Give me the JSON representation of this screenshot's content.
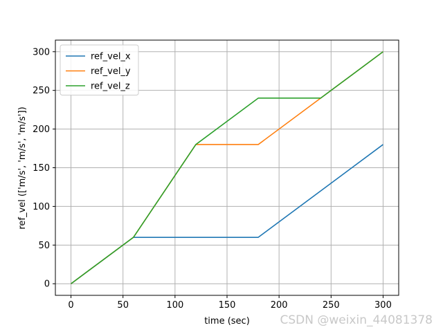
{
  "chart_data": {
    "type": "line",
    "title": "",
    "xlabel": "time (sec)",
    "ylabel": "ref_vel (['m/s', 'm/s', 'm/s'])",
    "xlim": [
      -15,
      315
    ],
    "ylim": [
      -15,
      315
    ],
    "xticks": [
      0,
      50,
      100,
      150,
      200,
      250,
      300
    ],
    "yticks": [
      0,
      50,
      100,
      150,
      200,
      250,
      300
    ],
    "grid": true,
    "legend_position": "top-left",
    "series": [
      {
        "name": "ref_vel_x",
        "color": "#1f77b4",
        "x": [
          0,
          60,
          180,
          300
        ],
        "y": [
          0,
          60,
          60,
          180
        ]
      },
      {
        "name": "ref_vel_y",
        "color": "#ff7f0e",
        "x": [
          0,
          60,
          120,
          180,
          240,
          300
        ],
        "y": [
          0,
          60,
          180,
          180,
          240,
          300
        ]
      },
      {
        "name": "ref_vel_z",
        "color": "#2ca02c",
        "x": [
          0,
          60,
          120,
          180,
          240,
          300
        ],
        "y": [
          0,
          60,
          180,
          240,
          240,
          300
        ]
      }
    ]
  },
  "watermark": "CSDN @weixin_44081378"
}
